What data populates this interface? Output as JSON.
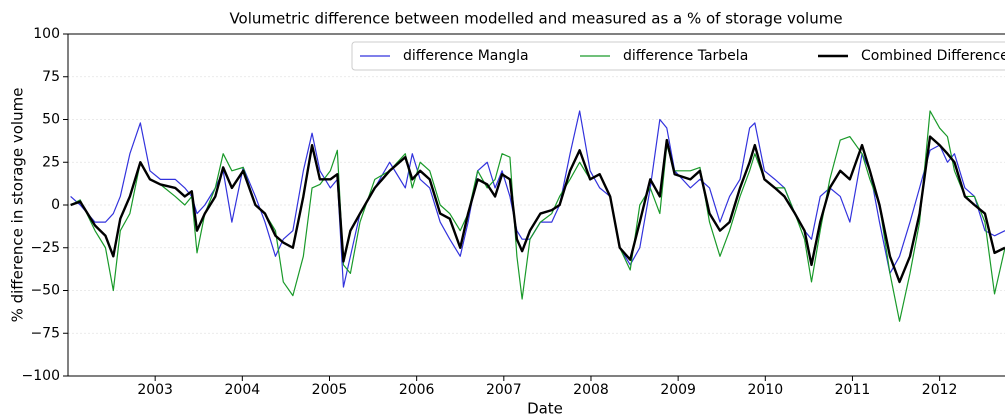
{
  "chart_data": {
    "type": "line",
    "title": "Volumetric difference between modelled and measured as a % of storage volume",
    "x_label": "Date",
    "y_label": "% difference in storage volume",
    "xlim": [
      2002.0,
      2012.75
    ],
    "xticks": [
      2003,
      2004,
      2005,
      2006,
      2007,
      2008,
      2009,
      2010,
      2011,
      2012
    ],
    "ylim": [
      -100,
      100
    ],
    "yticks": [
      {
        "value": -100,
        "label": "−100"
      },
      {
        "value": -75,
        "label": "−75"
      },
      {
        "value": -50,
        "label": "−50"
      },
      {
        "value": -25,
        "label": "−25"
      },
      0,
      25,
      50,
      75,
      100
    ],
    "grid": true,
    "legend": "upper right",
    "x": [
      2002.03,
      2002.14,
      2002.31,
      2002.43,
      2002.52,
      2002.6,
      2002.71,
      2002.83,
      2002.94,
      2003.06,
      2003.23,
      2003.34,
      2003.42,
      2003.48,
      2003.57,
      2003.69,
      2003.78,
      2003.88,
      2004.01,
      2004.15,
      2004.26,
      2004.38,
      2004.47,
      2004.58,
      2004.7,
      2004.8,
      2004.89,
      2005.01,
      2005.09,
      2005.16,
      2005.24,
      2005.35,
      2005.52,
      2005.69,
      2005.87,
      2005.95,
      2006.04,
      2006.15,
      2006.27,
      2006.38,
      2006.5,
      2006.59,
      2006.7,
      2006.81,
      2006.9,
      2006.98,
      2007.07,
      2007.15,
      2007.21,
      2007.3,
      2007.42,
      2007.55,
      2007.64,
      2007.76,
      2007.87,
      2007.99,
      2008.1,
      2008.22,
      2008.33,
      2008.45,
      2008.56,
      2008.68,
      2008.79,
      2008.87,
      2008.96,
      2009.14,
      2009.25,
      2009.36,
      2009.48,
      2009.59,
      2009.71,
      2009.82,
      2009.88,
      2009.99,
      2010.11,
      2010.22,
      2010.34,
      2010.45,
      2010.53,
      2010.63,
      2010.74,
      2010.86,
      2010.97,
      2011.11,
      2011.2,
      2011.31,
      2011.43,
      2011.54,
      2011.66,
      2011.77,
      2011.89,
      2012.0,
      2012.09,
      2012.17,
      2012.29,
      2012.4,
      2012.52,
      2012.63,
      2012.75
    ],
    "series": [
      {
        "name": "difference Mangla",
        "color": "#3333dd",
        "width": 1.2,
        "values": [
          5,
          0,
          -10,
          -10,
          -5,
          5,
          30,
          48,
          20,
          15,
          15,
          10,
          5,
          -5,
          0,
          10,
          20,
          -10,
          22,
          5,
          -10,
          -30,
          -20,
          -15,
          20,
          42,
          20,
          10,
          15,
          -48,
          -30,
          -5,
          10,
          25,
          10,
          30,
          15,
          10,
          -10,
          -20,
          -30,
          -10,
          20,
          25,
          10,
          20,
          5,
          -15,
          -20,
          -20,
          -10,
          -10,
          0,
          30,
          55,
          20,
          10,
          5,
          -25,
          -35,
          -25,
          10,
          50,
          45,
          20,
          10,
          15,
          10,
          -10,
          5,
          15,
          45,
          48,
          20,
          15,
          10,
          -5,
          -15,
          -20,
          5,
          10,
          5,
          -10,
          30,
          20,
          -10,
          -40,
          -30,
          -10,
          10,
          32,
          35,
          25,
          30,
          10,
          5,
          -15,
          -18,
          -15
        ]
      },
      {
        "name": "difference Tarbela",
        "color": "#1a9a2a",
        "width": 1.2,
        "values": [
          0,
          3,
          -15,
          -25,
          -50,
          -15,
          -5,
          25,
          15,
          12,
          5,
          0,
          5,
          -28,
          -5,
          10,
          30,
          20,
          22,
          0,
          -5,
          -15,
          -45,
          -53,
          -30,
          10,
          12,
          20,
          32,
          -35,
          -40,
          -10,
          15,
          20,
          30,
          10,
          25,
          20,
          0,
          -5,
          -15,
          -5,
          20,
          10,
          15,
          30,
          28,
          -30,
          -55,
          -20,
          -10,
          -5,
          5,
          15,
          25,
          15,
          18,
          5,
          -25,
          -38,
          0,
          10,
          -5,
          35,
          20,
          20,
          22,
          -10,
          -30,
          -15,
          5,
          20,
          30,
          15,
          10,
          10,
          -5,
          -20,
          -45,
          -15,
          15,
          38,
          40,
          30,
          15,
          0,
          -40,
          -68,
          -40,
          -10,
          55,
          45,
          40,
          20,
          5,
          5,
          -10,
          -52,
          -25
        ]
      },
      {
        "name": "Combined Difference",
        "color": "#000000",
        "width": 2.4,
        "values": [
          0,
          2,
          -12,
          -18,
          -30,
          -8,
          5,
          25,
          15,
          12,
          10,
          5,
          8,
          -15,
          -5,
          5,
          22,
          10,
          20,
          0,
          -5,
          -18,
          -22,
          -25,
          5,
          35,
          15,
          15,
          18,
          -33,
          -15,
          -5,
          10,
          20,
          28,
          15,
          20,
          15,
          -5,
          -8,
          -25,
          -5,
          15,
          12,
          5,
          18,
          15,
          -20,
          -27,
          -15,
          -5,
          -3,
          0,
          20,
          32,
          15,
          18,
          5,
          -25,
          -32,
          -10,
          15,
          5,
          38,
          18,
          15,
          20,
          -5,
          -15,
          -10,
          10,
          25,
          35,
          15,
          10,
          5,
          -5,
          -15,
          -35,
          -10,
          10,
          20,
          15,
          35,
          20,
          0,
          -30,
          -45,
          -30,
          -5,
          40,
          35,
          30,
          25,
          5,
          0,
          -5,
          -28,
          -25
        ]
      }
    ]
  }
}
